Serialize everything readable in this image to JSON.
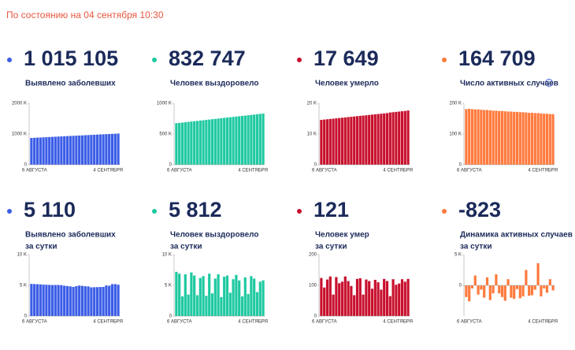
{
  "header": {
    "status": "По состоянию на 04 сентября 10:30"
  },
  "chart_data": [
    {
      "type": "bar",
      "headline": "1 015 105",
      "label": [
        "Выявлено заболевших"
      ],
      "color": "#3b5de7",
      "categories": [
        "6 АВГУСТА",
        null,
        null,
        null,
        null,
        null,
        null,
        null,
        null,
        null,
        null,
        null,
        null,
        null,
        null,
        null,
        null,
        null,
        null,
        null,
        null,
        null,
        null,
        null,
        null,
        null,
        null,
        null,
        null,
        "4 СЕНТЯБРЯ"
      ],
      "values": [
        872000,
        877000,
        882000,
        887000,
        892000,
        897000,
        902000,
        907000,
        912000,
        917000,
        922000,
        927000,
        932000,
        937000,
        942000,
        947000,
        951000,
        956000,
        961000,
        966000,
        971000,
        976000,
        981000,
        986000,
        991000,
        996000,
        1001000,
        1005000,
        1010000,
        1015105
      ],
      "ylim": [
        0,
        2000000
      ],
      "yticks": [
        0,
        {
          "value": 1000000,
          "label": "1000 K"
        },
        {
          "value": 2000000,
          "label": "2000 K"
        }
      ]
    },
    {
      "type": "bar",
      "headline": "832 747",
      "label": [
        "Человек выздоровело"
      ],
      "color": "#1ec9a1",
      "categories": [
        "6 АВГУСТА",
        null,
        null,
        null,
        null,
        null,
        null,
        null,
        null,
        null,
        null,
        null,
        null,
        null,
        null,
        null,
        null,
        null,
        null,
        null,
        null,
        null,
        null,
        null,
        null,
        null,
        null,
        null,
        null,
        "4 СЕНТЯБРЯ"
      ],
      "values": [
        676000,
        681000,
        686000,
        692000,
        697000,
        703000,
        708000,
        713000,
        719000,
        724000,
        730000,
        735000,
        741000,
        746000,
        751000,
        757000,
        762000,
        768000,
        773000,
        778000,
        784000,
        789000,
        795000,
        800000,
        806000,
        811000,
        816000,
        822000,
        827000,
        832747
      ],
      "ylim": [
        0,
        1000000
      ],
      "yticks": [
        0,
        {
          "value": 500000,
          "label": "500 K"
        },
        {
          "value": 1000000,
          "label": "1000 K"
        }
      ]
    },
    {
      "type": "bar",
      "headline": "17 649",
      "label": [
        "Человек умерло"
      ],
      "color": "#c8102e",
      "categories": [
        "6 АВГУСТА",
        null,
        null,
        null,
        null,
        null,
        null,
        null,
        null,
        null,
        null,
        null,
        null,
        null,
        null,
        null,
        null,
        null,
        null,
        null,
        null,
        null,
        null,
        null,
        null,
        null,
        null,
        null,
        null,
        "4 СЕНТЯБРЯ"
      ],
      "values": [
        14600,
        14700,
        14800,
        14900,
        15000,
        15100,
        15200,
        15300,
        15400,
        15500,
        15600,
        15700,
        15800,
        15900,
        16000,
        16100,
        16200,
        16300,
        16400,
        16500,
        16600,
        16700,
        16800,
        17000,
        17100,
        17200,
        17300,
        17400,
        17500,
        17649
      ],
      "ylim": [
        0,
        20000
      ],
      "yticks": [
        0,
        {
          "value": 10000,
          "label": "10 K"
        },
        {
          "value": 20000,
          "label": "20 K"
        }
      ]
    },
    {
      "type": "bar",
      "headline": "164 709",
      "label": [
        "Число активных случаев"
      ],
      "color": "#ff7a3d",
      "categories": [
        "6 АВГУСТА",
        null,
        null,
        null,
        null,
        null,
        null,
        null,
        null,
        null,
        null,
        null,
        null,
        null,
        null,
        null,
        null,
        null,
        null,
        null,
        null,
        null,
        null,
        null,
        null,
        null,
        null,
        null,
        null,
        "4 СЕНТЯБРЯ"
      ],
      "values": [
        181000,
        182000,
        181000,
        180000,
        180000,
        179000,
        178000,
        178000,
        177000,
        176000,
        176000,
        175000,
        175000,
        174000,
        173000,
        173000,
        172000,
        172000,
        171000,
        171000,
        170000,
        169000,
        169000,
        168000,
        168000,
        167000,
        166000,
        166000,
        165000,
        164709
      ],
      "ylim": [
        0,
        200000
      ],
      "yticks": [
        0,
        {
          "value": 100000,
          "label": "100 K"
        },
        {
          "value": 200000,
          "label": "200 K"
        }
      ]
    },
    {
      "type": "bar",
      "headline": "5 110",
      "label": [
        "Выявлено заболевших",
        "за сутки"
      ],
      "color": "#3b5de7",
      "categories": [
        "6 АВГУСТА",
        null,
        null,
        null,
        null,
        null,
        null,
        null,
        null,
        null,
        null,
        null,
        null,
        null,
        null,
        null,
        null,
        null,
        null,
        null,
        null,
        null,
        null,
        null,
        null,
        null,
        null,
        null,
        null,
        "4 СЕНТЯБРЯ"
      ],
      "values": [
        5241,
        5212,
        5189,
        5159,
        5118,
        5102,
        5075,
        5057,
        5061,
        5065,
        5041,
        4945,
        4892,
        4828,
        4748,
        4870,
        4969,
        4921,
        4852,
        4829,
        4676,
        4696,
        4711,
        4729,
        4744,
        4980,
        4941,
        5195,
        5205,
        5110
      ],
      "ylim": [
        0,
        10000
      ],
      "yticks": [
        0,
        {
          "value": 5000,
          "label": "5 K"
        },
        {
          "value": 10000,
          "label": "10 K"
        }
      ]
    },
    {
      "type": "bar",
      "headline": "5 812",
      "label": [
        "Человек выздоровело",
        "за сутки"
      ],
      "color": "#1ec9a1",
      "categories": [
        "6 АВГУСТА",
        null,
        null,
        null,
        null,
        null,
        null,
        null,
        null,
        null,
        null,
        null,
        null,
        null,
        null,
        null,
        null,
        null,
        null,
        null,
        null,
        null,
        null,
        null,
        null,
        null,
        null,
        null,
        null,
        "4 СЕНТЯБРЯ"
      ],
      "values": [
        7200,
        6900,
        3200,
        6800,
        3500,
        7100,
        6600,
        3400,
        6200,
        6500,
        3300,
        6900,
        3700,
        6100,
        6800,
        3100,
        6400,
        6600,
        3800,
        6000,
        6700,
        5800,
        3200,
        6300,
        3600,
        6500,
        6100,
        3900,
        5600,
        5812
      ],
      "ylim": [
        0,
        10000
      ],
      "yticks": [
        0,
        {
          "value": 5000,
          "label": "5 K"
        },
        {
          "value": 10000,
          "label": "10 K"
        }
      ]
    },
    {
      "type": "bar",
      "headline": "121",
      "label": [
        "Человек умер",
        "за сутки"
      ],
      "color": "#c8102e",
      "categories": [
        "6 АВГУСТА",
        null,
        null,
        null,
        null,
        null,
        null,
        null,
        null,
        null,
        null,
        null,
        null,
        null,
        null,
        null,
        null,
        null,
        null,
        null,
        null,
        null,
        null,
        null,
        null,
        null,
        null,
        null,
        null,
        "4 СЕНТЯБРЯ"
      ],
      "values": [
        124,
        93,
        119,
        129,
        70,
        127,
        107,
        112,
        129,
        114,
        98,
        68,
        121,
        123,
        70,
        119,
        114,
        89,
        118,
        110,
        86,
        121,
        114,
        65,
        120,
        102,
        106,
        120,
        112,
        121
      ],
      "ylim": [
        0,
        200
      ],
      "yticks": [
        0,
        100,
        200
      ]
    },
    {
      "type": "bar",
      "headline": "-823",
      "label": [
        "Динамика активных случаев",
        "за сутки"
      ],
      "color": "#ff7a3d",
      "categories": [
        "6 АВГУСТА",
        null,
        null,
        null,
        null,
        null,
        null,
        null,
        null,
        null,
        null,
        null,
        null,
        null,
        null,
        null,
        null,
        null,
        null,
        null,
        null,
        null,
        null,
        null,
        null,
        null,
        null,
        null,
        null,
        "4 СЕНТЯБРЯ"
      ],
      "values": [
        -1900,
        -2600,
        -500,
        1600,
        -1500,
        -700,
        -2000,
        1300,
        -2400,
        -1300,
        1800,
        -1300,
        -1900,
        -2500,
        1000,
        -2000,
        -2200,
        -600,
        -2100,
        -1800,
        2500,
        -1700,
        -1600,
        -700,
        3600,
        -1800,
        -500,
        -1200,
        1000,
        -823
      ],
      "ylim": [
        -5000,
        5000
      ],
      "yticks": [
        0,
        {
          "value": 5000,
          "label": "5 K"
        }
      ]
    }
  ]
}
